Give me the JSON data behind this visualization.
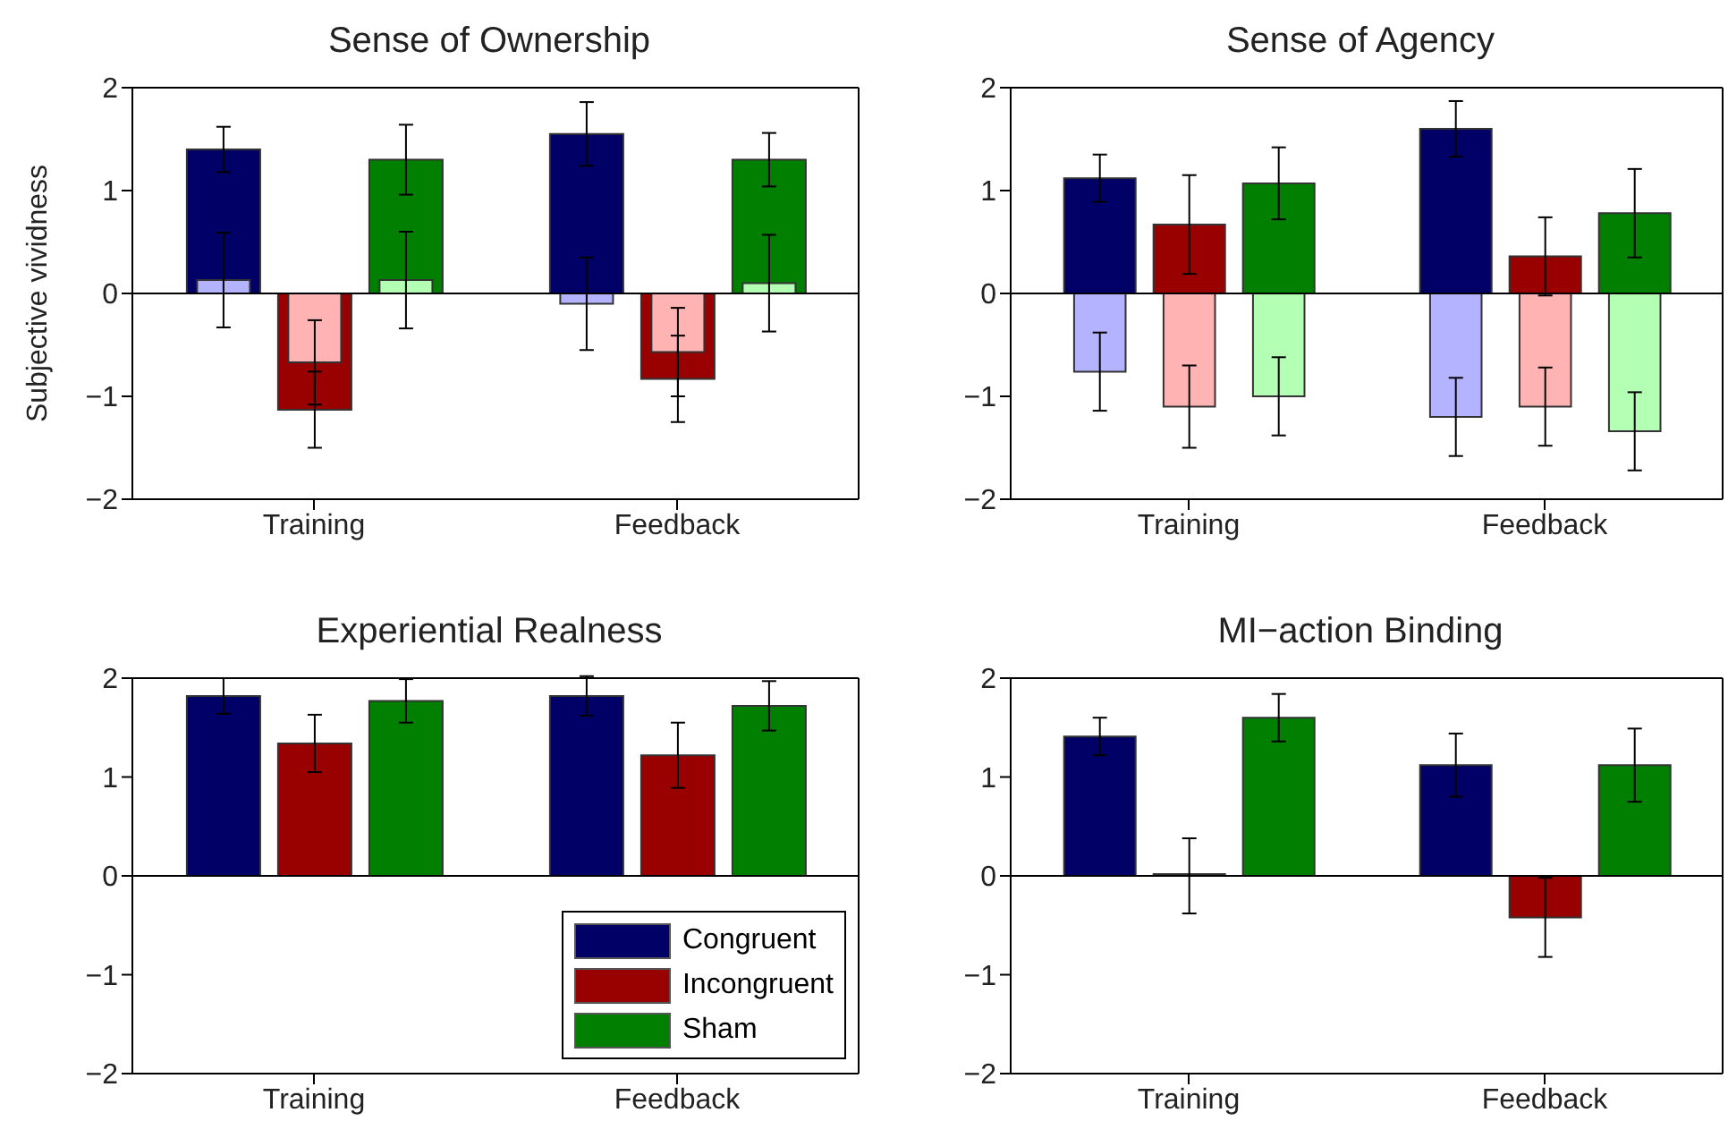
{
  "chart_data": [
    {
      "type": "bar",
      "title": "Sense of Ownership",
      "ylabel": "Subjective vividness",
      "categories": [
        "Training",
        "Feedback"
      ],
      "ylim": [
        -2,
        2
      ],
      "yticks": [
        -2,
        -1,
        0,
        1,
        2
      ],
      "ref_lines": [
        {
          "axis": "y",
          "value": 0
        }
      ],
      "series": [
        {
          "color": "#000066",
          "values": [
            1.4,
            1.55
          ],
          "errors": [
            0.22,
            0.31
          ]
        },
        {
          "color": "#990000",
          "values": [
            -1.13,
            -0.83
          ],
          "errors": [
            0.37,
            0.42
          ]
        },
        {
          "color": "#007f00",
          "values": [
            1.3,
            1.3
          ],
          "errors": [
            0.34,
            0.26
          ]
        },
        {
          "color": "#b3b3ff",
          "values": [
            0.13,
            -0.1
          ],
          "errors": [
            0.46,
            0.45
          ]
        },
        {
          "color": "#ffb3b3",
          "values": [
            -0.67,
            -0.57
          ],
          "errors": [
            0.41,
            0.43
          ]
        },
        {
          "color": "#b3ffb3",
          "values": [
            0.13,
            0.1
          ],
          "errors": [
            0.47,
            0.47
          ]
        }
      ]
    },
    {
      "type": "bar",
      "title": "Sense of Agency",
      "categories": [
        "Training",
        "Feedback"
      ],
      "ylim": [
        -2,
        2
      ],
      "yticks": [
        -2,
        -1,
        0,
        1,
        2
      ],
      "ref_lines": [
        {
          "axis": "y",
          "value": 0
        }
      ],
      "series": [
        {
          "color": "#000066",
          "values": [
            1.12,
            1.6
          ],
          "errors": [
            0.23,
            0.27
          ]
        },
        {
          "color": "#990000",
          "values": [
            0.67,
            0.36
          ],
          "errors": [
            0.48,
            0.38
          ]
        },
        {
          "color": "#007f00",
          "values": [
            1.07,
            0.78
          ],
          "errors": [
            0.35,
            0.43
          ]
        },
        {
          "color": "#b3b3ff",
          "values": [
            -0.76,
            -1.2
          ],
          "errors": [
            0.38,
            0.38
          ]
        },
        {
          "color": "#ffb3b3",
          "values": [
            -1.1,
            -1.1
          ],
          "errors": [
            0.4,
            0.38
          ]
        },
        {
          "color": "#b3ffb3",
          "values": [
            -1.0,
            -1.34
          ],
          "errors": [
            0.38,
            0.38
          ]
        }
      ]
    },
    {
      "type": "bar",
      "title": "Experiential Realness",
      "categories": [
        "Training",
        "Feedback"
      ],
      "ylim": [
        -2,
        2
      ],
      "yticks": [
        -2,
        -1,
        0,
        1,
        2
      ],
      "ref_lines": [
        {
          "axis": "y",
          "value": 0
        }
      ],
      "legend": "bottom right",
      "series": [
        {
          "name": "Congruent",
          "color": "#000066",
          "values": [
            1.82,
            1.82
          ],
          "errors": [
            0.18,
            0.2
          ]
        },
        {
          "name": "Incongruent",
          "color": "#990000",
          "values": [
            1.34,
            1.22
          ],
          "errors": [
            0.29,
            0.33
          ]
        },
        {
          "name": "Sham",
          "color": "#007f00",
          "values": [
            1.77,
            1.72
          ],
          "errors": [
            0.22,
            0.25
          ]
        }
      ]
    },
    {
      "type": "bar",
      "title": "MI−action Binding",
      "categories": [
        "Training",
        "Feedback"
      ],
      "ylim": [
        -2,
        2
      ],
      "yticks": [
        -2,
        -1,
        0,
        1,
        2
      ],
      "ref_lines": [
        {
          "axis": "y",
          "value": 0
        }
      ],
      "series": [
        {
          "color": "#000066",
          "values": [
            1.41,
            1.12
          ],
          "errors": [
            0.19,
            0.32
          ]
        },
        {
          "color": "#990000",
          "values": [
            0,
            -0.42
          ],
          "errors": [
            0.38,
            0.4
          ]
        },
        {
          "color": "#007f00",
          "values": [
            1.6,
            1.12
          ],
          "errors": [
            0.24,
            0.37
          ]
        }
      ]
    }
  ]
}
